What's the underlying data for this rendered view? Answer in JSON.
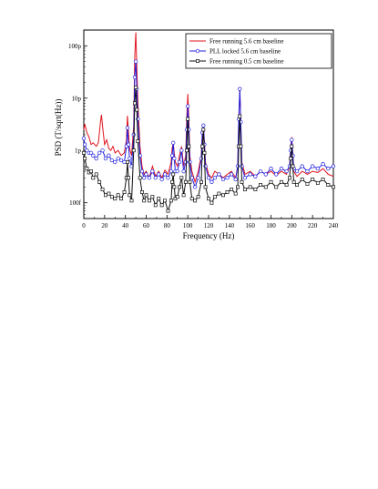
{
  "chart_data": {
    "type": "line",
    "title": "",
    "xlabel": "Frequency (Hz)",
    "ylabel": "PSD (T/sqrt(Hz))",
    "xlim": [
      0,
      240
    ],
    "ylim_log": [
      5e-14,
      2e-10
    ],
    "y_scale": "log",
    "grid": false,
    "legend_position": "top-right",
    "x_ticks": [
      0,
      20,
      40,
      60,
      80,
      100,
      120,
      140,
      160,
      180,
      200,
      220,
      240
    ],
    "x_tick_labels": [
      "0",
      "20",
      "40",
      "60",
      "80",
      "100",
      "120",
      "140",
      "160",
      "180",
      "200",
      "220",
      "240"
    ],
    "y_ticks": [
      1e-13,
      1e-12,
      1e-11,
      1e-10
    ],
    "y_tick_labels": [
      "100f",
      "1p",
      "10p",
      "100p"
    ],
    "series": [
      {
        "name": "Free running 5.6 cm baseline",
        "color": "#e0141e",
        "marker": "none",
        "x": [
          0,
          1,
          3,
          5,
          7,
          9,
          12,
          14,
          16,
          17,
          18,
          20,
          22,
          24,
          26,
          28,
          30,
          33,
          36,
          39,
          41,
          42,
          43,
          44,
          46,
          48,
          49,
          50,
          51,
          52,
          54,
          56,
          58,
          60,
          63,
          66,
          69,
          72,
          75,
          78,
          81,
          84,
          85,
          86,
          87,
          88,
          90,
          92,
          94,
          96,
          98,
          99,
          100,
          101,
          102,
          104,
          107,
          110,
          113,
          114,
          115,
          116,
          117,
          120,
          123,
          126,
          130,
          134,
          138,
          142,
          146,
          148,
          149,
          150,
          151,
          152,
          155,
          160,
          165,
          170,
          175,
          180,
          185,
          190,
          195,
          198,
          199,
          200,
          201,
          202,
          205,
          210,
          215,
          220,
          225,
          230,
          235,
          240
        ],
        "y": [
          2.5e-12,
          3.2e-12,
          2.2e-12,
          1.8e-12,
          1.3e-12,
          1.4e-12,
          1.2e-12,
          1.4e-12,
          3.5e-12,
          4.8e-12,
          3e-12,
          1.3e-12,
          1.6e-12,
          1.1e-12,
          1e-12,
          1.2e-12,
          9e-13,
          1e-12,
          8e-13,
          9e-13,
          1.6e-12,
          4.6e-12,
          2.2e-12,
          1.1e-12,
          8e-13,
          3e-12,
          6e-11,
          1.8e-10,
          4e-11,
          8e-12,
          1.2e-12,
          5e-13,
          3.5e-13,
          4e-13,
          3e-13,
          5e-13,
          3.2e-13,
          4e-13,
          3e-13,
          4.2e-13,
          3.5e-13,
          6e-13,
          1.1e-12,
          1.4e-12,
          9e-13,
          6e-13,
          5e-13,
          8e-13,
          1.2e-12,
          5e-13,
          8e-13,
          4e-12,
          1.2e-11,
          4e-12,
          8e-13,
          4e-13,
          2.5e-13,
          4e-13,
          8e-13,
          2.4e-12,
          3e-12,
          1.5e-12,
          6e-13,
          3.5e-13,
          3e-13,
          4e-13,
          3.5e-13,
          3e-13,
          3.5e-13,
          4e-13,
          3e-13,
          5e-13,
          3.5e-12,
          1.5e-11,
          3e-12,
          6e-13,
          3.5e-13,
          4e-13,
          3.2e-13,
          4e-13,
          3.5e-13,
          4e-13,
          3.3e-13,
          4e-13,
          3.5e-13,
          5e-13,
          1.2e-12,
          1.8e-12,
          8e-13,
          4e-13,
          3.2e-13,
          4e-13,
          3.5e-13,
          4e-13,
          3.8e-13,
          4.5e-13,
          3.5e-13,
          3.2e-13
        ]
      },
      {
        "name": "PLL locked 5.6 cm baseline",
        "color": "#2020e0",
        "marker": "circle",
        "x": [
          0,
          1,
          3,
          5,
          7,
          9,
          12,
          15,
          18,
          21,
          24,
          27,
          30,
          33,
          36,
          39,
          41,
          42,
          43,
          44,
          46,
          48,
          49,
          50,
          51,
          52,
          54,
          56,
          58,
          60,
          63,
          66,
          69,
          72,
          75,
          78,
          81,
          84,
          85,
          86,
          87,
          88,
          90,
          92,
          94,
          96,
          98,
          99,
          100,
          101,
          102,
          104,
          107,
          110,
          113,
          114,
          115,
          116,
          117,
          120,
          123,
          126,
          130,
          134,
          138,
          142,
          146,
          148,
          149,
          150,
          151,
          152,
          155,
          160,
          165,
          170,
          175,
          180,
          185,
          190,
          195,
          198,
          199,
          200,
          201,
          202,
          205,
          210,
          215,
          220,
          225,
          230,
          235,
          240
        ],
        "y": [
          1.7e-12,
          1.3e-12,
          1e-12,
          9e-13,
          9e-13,
          8e-13,
          7e-13,
          9e-13,
          1e-12,
          7e-13,
          8e-13,
          6.5e-13,
          6e-13,
          7e-13,
          6.5e-13,
          6e-13,
          1.2e-12,
          2.7e-12,
          1.3e-12,
          7e-13,
          5e-13,
          2e-12,
          2.5e-11,
          5e-11,
          1.5e-11,
          4e-12,
          8e-13,
          4e-13,
          3e-13,
          3.5e-13,
          3e-13,
          4e-13,
          3e-13,
          3.5e-13,
          2.8e-13,
          3.5e-13,
          3e-13,
          4e-13,
          8e-13,
          1.4e-12,
          7e-13,
          4e-13,
          4e-13,
          6e-13,
          1e-12,
          4e-13,
          6e-13,
          2.5e-12,
          7e-12,
          2.5e-12,
          6e-13,
          3e-13,
          2e-13,
          3e-13,
          7e-13,
          2.2e-12,
          3e-12,
          1.3e-12,
          5e-13,
          3e-13,
          2.5e-13,
          3e-13,
          3.5e-13,
          2.8e-13,
          3e-13,
          3.5e-13,
          2.8e-13,
          5e-13,
          4e-12,
          1.5e-11,
          3.5e-12,
          5e-13,
          3e-13,
          3.5e-13,
          3.2e-13,
          4e-13,
          3.5e-13,
          4.5e-13,
          3.5e-13,
          4.5e-13,
          4e-13,
          5e-13,
          1e-12,
          1.6e-12,
          8e-13,
          4.5e-13,
          4e-13,
          5e-13,
          4e-13,
          5e-13,
          4.5e-13,
          5.5e-13,
          4.5e-13,
          5e-13
        ]
      },
      {
        "name": "Free running 0.5 cm baseline",
        "color": "#111111",
        "marker": "square",
        "x": [
          0,
          1,
          3,
          5,
          7,
          9,
          12,
          15,
          18,
          21,
          24,
          27,
          30,
          33,
          36,
          39,
          41,
          42,
          43,
          44,
          46,
          48,
          49,
          50,
          51,
          52,
          54,
          56,
          58,
          60,
          63,
          66,
          69,
          72,
          75,
          78,
          81,
          84,
          85,
          86,
          87,
          88,
          90,
          92,
          94,
          96,
          98,
          99,
          100,
          101,
          102,
          104,
          107,
          110,
          113,
          114,
          115,
          116,
          117,
          120,
          123,
          126,
          130,
          134,
          138,
          142,
          146,
          148,
          149,
          150,
          151,
          152,
          155,
          160,
          165,
          170,
          175,
          180,
          185,
          190,
          195,
          198,
          199,
          200,
          201,
          202,
          205,
          210,
          215,
          220,
          225,
          230,
          235,
          240
        ],
        "y": [
          9e-13,
          7e-13,
          4.5e-13,
          3.8e-13,
          4e-13,
          3e-13,
          3.5e-13,
          2.5e-13,
          1.8e-13,
          1.4e-13,
          1.5e-13,
          1.3e-13,
          1.2e-13,
          1.4e-13,
          1.2e-13,
          1.6e-13,
          3e-13,
          6e-13,
          3e-13,
          1.4e-13,
          1.1e-13,
          1e-12,
          8e-12,
          1.6e-11,
          6e-12,
          1.5e-12,
          3e-13,
          1.6e-13,
          1.1e-13,
          1.4e-13,
          1.1e-13,
          1.3e-13,
          9e-14,
          1.2e-13,
          9e-14,
          1.1e-13,
          7e-14,
          1.1e-13,
          2.5e-13,
          3.5e-13,
          2e-13,
          1.2e-13,
          1.3e-13,
          2e-13,
          3e-13,
          1.4e-13,
          2.5e-13,
          1e-12,
          4e-12,
          1.2e-12,
          2.5e-13,
          1.2e-13,
          1.1e-13,
          1.3e-13,
          2.5e-13,
          1.2e-12,
          2.5e-12,
          9e-13,
          2e-13,
          1.2e-13,
          1e-13,
          1.3e-13,
          1.5e-13,
          1.4e-13,
          1.6e-13,
          1.8e-13,
          1.5e-13,
          2e-13,
          1.2e-12,
          4.5e-12,
          1.2e-12,
          2.5e-13,
          1.8e-13,
          2e-13,
          1.8e-13,
          2.2e-13,
          2e-13,
          2.5e-13,
          2e-13,
          2.5e-13,
          2.2e-13,
          3e-13,
          7e-13,
          1.2e-12,
          5e-13,
          2.5e-13,
          2.2e-13,
          2.8e-13,
          2.3e-13,
          2.8e-13,
          2.4e-13,
          2.8e-13,
          2.2e-13,
          2e-13
        ]
      }
    ]
  }
}
